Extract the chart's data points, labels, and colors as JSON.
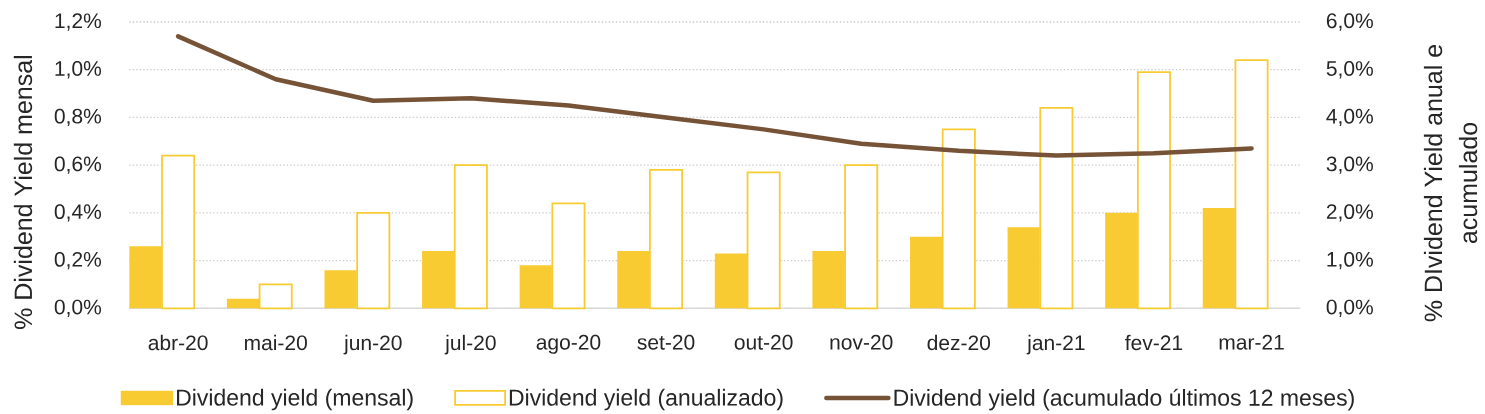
{
  "chart_data": {
    "type": "bar",
    "categories": [
      "abr-20",
      "mai-20",
      "jun-20",
      "jul-20",
      "ago-20",
      "set-20",
      "out-20",
      "nov-20",
      "dez-20",
      "jan-21",
      "fev-21",
      "mar-21"
    ],
    "ylabel": "% Dividend Yield mensal",
    "y2label": "% DIvidend Yield anual e acumulado",
    "series": [
      {
        "name": "Dividend yield (mensal)",
        "color": "#f9cb33",
        "values": [
          0.26,
          0.04,
          0.16,
          0.24,
          0.18,
          0.24,
          0.23,
          0.24,
          0.3,
          0.34,
          0.4,
          0.42
        ]
      },
      {
        "name": "Dividend yield (anualizado)",
        "color": "#f9cb33",
        "axis": "y2",
        "values": [
          3.2,
          0.5,
          2.0,
          3.0,
          2.2,
          2.9,
          2.85,
          3.0,
          3.75,
          4.2,
          4.95,
          5.2
        ]
      },
      {
        "name": "Dividend yield (acumulado últimos 12 meses)",
        "type": "line",
        "color": "#765337",
        "axis": "y2",
        "values": [
          5.7,
          4.8,
          4.35,
          4.4,
          4.25,
          4.0,
          3.75,
          3.45,
          3.3,
          3.2,
          3.25,
          3.35
        ]
      }
    ],
    "ylim": [
      0,
      1.2
    ],
    "yticks": [
      {
        "value": 0,
        "label": "0,0%"
      },
      {
        "value": 0.2,
        "label": "0,2%"
      },
      {
        "value": 0.4,
        "label": "0,4%"
      },
      {
        "value": 0.6,
        "label": "0,6%"
      },
      {
        "value": 0.8,
        "label": "0,8%"
      },
      {
        "value": 1.0,
        "label": "1,0%"
      },
      {
        "value": 1.2,
        "label": "1,2%"
      }
    ],
    "y2lim": [
      0,
      6
    ],
    "y2ticks": [
      {
        "value": 0,
        "label": "0,0%"
      },
      {
        "value": 1,
        "label": "1,0%"
      },
      {
        "value": 2,
        "label": "2,0%"
      },
      {
        "value": 3,
        "label": "3,0%"
      },
      {
        "value": 4,
        "label": "4,0%"
      },
      {
        "value": 5,
        "label": "5,0%"
      },
      {
        "value": 6,
        "label": "6,0%"
      }
    ],
    "grid": "y",
    "legend": "bottom"
  }
}
